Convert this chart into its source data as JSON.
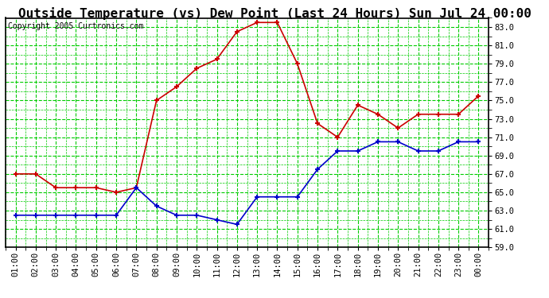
{
  "title": "Outside Temperature (vs) Dew Point (Last 24 Hours) Sun Jul 24 00:00",
  "copyright": "Copyright 2005 Curtronics.com",
  "x_labels": [
    "01:00",
    "02:00",
    "03:00",
    "04:00",
    "05:00",
    "06:00",
    "07:00",
    "08:00",
    "09:00",
    "10:00",
    "11:00",
    "12:00",
    "13:00",
    "14:00",
    "15:00",
    "16:00",
    "17:00",
    "18:00",
    "19:00",
    "20:00",
    "21:00",
    "22:00",
    "23:00",
    "00:00"
  ],
  "temp_y": [
    67.0,
    67.0,
    65.5,
    65.5,
    65.5,
    65.0,
    65.5,
    75.0,
    76.5,
    78.5,
    79.5,
    82.5,
    83.5,
    83.5,
    79.0,
    72.5,
    71.0,
    74.5,
    73.5,
    72.0,
    73.5,
    73.5,
    73.5,
    75.5
  ],
  "dew_y": [
    62.5,
    62.5,
    62.5,
    62.5,
    62.5,
    62.5,
    65.5,
    63.5,
    62.5,
    62.5,
    62.0,
    61.5,
    64.5,
    64.5,
    64.5,
    67.5,
    69.5,
    69.5,
    70.5,
    70.5,
    69.5,
    69.5,
    70.5,
    70.5
  ],
  "temp_color": "#cc0000",
  "dew_color": "#0000cc",
  "grid_color": "#00cc00",
  "bg_color": "#ffffff",
  "ylim": [
    59.0,
    84.0
  ],
  "yticks": [
    59.0,
    61.0,
    63.0,
    65.0,
    67.0,
    69.0,
    71.0,
    73.0,
    75.0,
    77.0,
    79.0,
    81.0,
    83.0
  ],
  "title_fontsize": 11.5,
  "tick_fontsize": 7.5,
  "copyright_fontsize": 7.0
}
